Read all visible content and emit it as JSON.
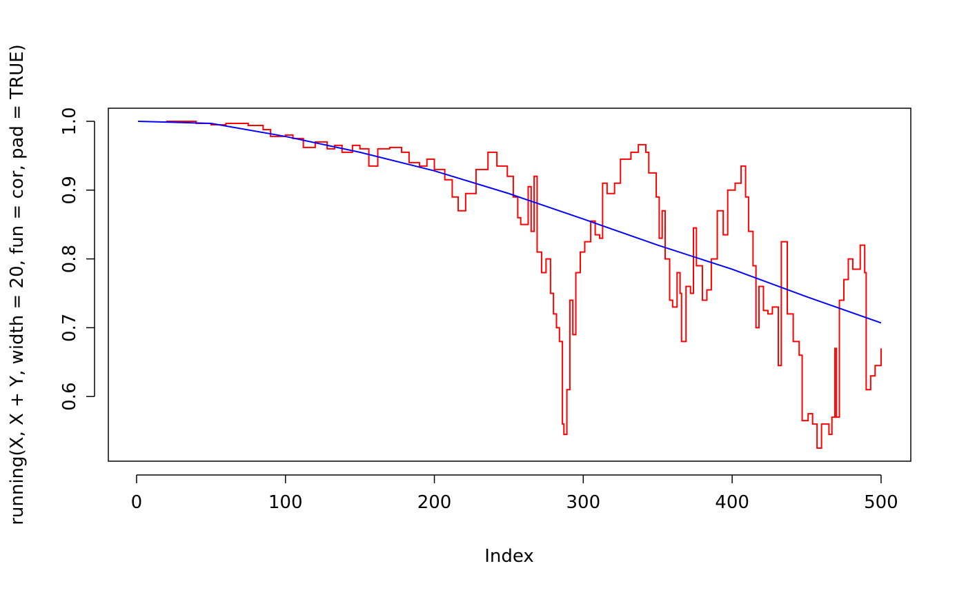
{
  "chart_data": {
    "type": "line",
    "xlabel": "Index",
    "ylabel": "running(X, X + Y, width = 20, fun = cor, pad = TRUE)",
    "xlim": [
      -18.96,
      519.96
    ],
    "xticks": [
      0,
      100,
      200,
      300,
      400,
      500
    ],
    "ylim": [
      0.506,
      1.019
    ],
    "yticks": [
      0.6,
      0.7,
      0.8,
      0.9,
      {
        "value": 1,
        "label": "1.0"
      }
    ],
    "series": [
      {
        "color": "#ff0000",
        "step": true,
        "x": [
          20,
          40,
          50,
          60,
          75,
          85,
          90,
          100,
          105,
          112,
          120,
          128,
          133,
          138,
          145,
          150,
          156,
          162,
          170,
          178,
          183,
          190,
          195,
          200,
          207,
          212,
          216,
          221,
          228,
          236,
          242,
          249,
          253,
          256,
          258,
          263,
          265,
          267,
          269,
          272,
          275,
          278,
          280,
          282,
          284,
          286,
          287,
          289,
          291,
          293,
          295,
          298,
          301,
          305,
          308,
          311,
          313,
          316,
          321,
          325,
          332,
          337,
          342,
          344,
          349,
          351,
          353,
          355,
          358,
          360,
          363,
          365,
          366,
          369,
          372,
          374,
          376,
          380,
          383,
          386,
          390,
          394,
          397,
          402,
          406,
          409,
          411,
          414,
          416,
          418,
          421,
          424,
          427,
          431,
          433,
          437,
          441,
          445,
          447,
          451,
          454,
          457,
          460,
          465,
          467,
          469,
          470,
          472,
          475,
          478,
          481,
          486,
          489,
          490,
          493,
          496,
          500
        ],
        "values": [
          1.0,
          0.997,
          0.995,
          0.997,
          0.994,
          0.988,
          0.978,
          0.98,
          0.975,
          0.962,
          0.97,
          0.96,
          0.965,
          0.955,
          0.965,
          0.96,
          0.935,
          0.96,
          0.962,
          0.955,
          0.94,
          0.935,
          0.945,
          0.93,
          0.915,
          0.89,
          0.87,
          0.895,
          0.93,
          0.955,
          0.935,
          0.92,
          0.89,
          0.86,
          0.85,
          0.905,
          0.84,
          0.92,
          0.81,
          0.78,
          0.8,
          0.75,
          0.72,
          0.7,
          0.68,
          0.56,
          0.545,
          0.61,
          0.74,
          0.69,
          0.78,
          0.81,
          0.825,
          0.855,
          0.835,
          0.83,
          0.91,
          0.895,
          0.91,
          0.945,
          0.955,
          0.966,
          0.955,
          0.925,
          0.89,
          0.83,
          0.87,
          0.8,
          0.74,
          0.73,
          0.78,
          0.75,
          0.68,
          0.76,
          0.75,
          0.845,
          0.79,
          0.74,
          0.755,
          0.8,
          0.87,
          0.835,
          0.9,
          0.91,
          0.935,
          0.89,
          0.84,
          0.79,
          0.7,
          0.76,
          0.725,
          0.72,
          0.73,
          0.645,
          0.825,
          0.72,
          0.68,
          0.66,
          0.565,
          0.575,
          0.56,
          0.525,
          0.56,
          0.545,
          0.57,
          0.67,
          0.57,
          0.74,
          0.77,
          0.8,
          0.785,
          0.82,
          0.78,
          0.61,
          0.63,
          0.645,
          0.67
        ]
      },
      {
        "color": "#0000ff",
        "step": false,
        "x": [
          1,
          50,
          100,
          150,
          200,
          250,
          300,
          350,
          400,
          450,
          500
        ],
        "values": [
          1.0,
          0.997,
          0.978,
          0.955,
          0.928,
          0.895,
          0.858,
          0.82,
          0.785,
          0.745,
          0.707
        ]
      }
    ]
  }
}
